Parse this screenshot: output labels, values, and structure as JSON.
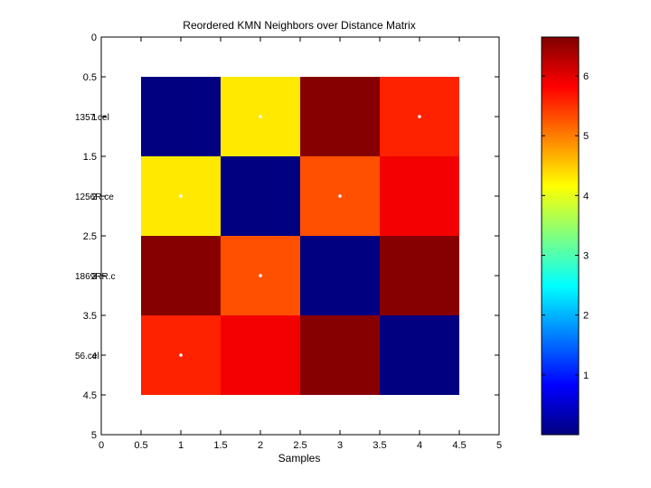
{
  "chart_data": {
    "type": "heatmap",
    "title": "Reordered KMN Neighbors over Distance Matrix",
    "xlabel": "Samples",
    "ylabel": "",
    "xlim": [
      0,
      5
    ],
    "ylim": [
      0,
      5
    ],
    "x_ticks": [
      "0",
      "0.5",
      "1",
      "1.5",
      "2",
      "2.5",
      "3",
      "3.5",
      "4",
      "4.5",
      "5"
    ],
    "y_ticks": [
      "0",
      "0.5",
      "1",
      "1.5",
      "2",
      "2.5",
      "3",
      "3.5",
      "4",
      "4.5",
      "5"
    ],
    "row_labels": [
      "1357.cel",
      "1256R.ce",
      "1869RR.c",
      "56.cel"
    ],
    "row_label_overlay": [
      "1",
      "2",
      "3",
      "4"
    ],
    "matrix": [
      [
        0.0,
        4.3,
        6.6,
        5.6
      ],
      [
        4.3,
        0.0,
        5.3,
        5.9
      ],
      [
        6.6,
        5.3,
        0.0,
        6.6
      ],
      [
        5.6,
        5.9,
        6.6,
        0.0
      ]
    ],
    "neighbor_markers": [
      {
        "row": 1,
        "col": 2
      },
      {
        "row": 1,
        "col": 4
      },
      {
        "row": 2,
        "col": 1
      },
      {
        "row": 2,
        "col": 3
      },
      {
        "row": 3,
        "col": 2
      },
      {
        "row": 4,
        "col": 1
      }
    ],
    "colorbar": {
      "colormap": "jet",
      "min": 0.0,
      "max": 6.65,
      "ticks": [
        "1",
        "2",
        "3",
        "4",
        "5",
        "6"
      ]
    },
    "grid": false
  }
}
